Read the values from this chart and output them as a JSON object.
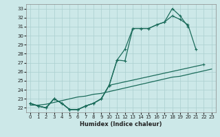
{
  "xlabel": "Humidex (Indice chaleur)",
  "background_color": "#cce8e8",
  "grid_color": "#aacfcf",
  "line_color": "#1a6b5a",
  "x_values": [
    0,
    1,
    2,
    3,
    4,
    5,
    6,
    7,
    8,
    9,
    10,
    11,
    12,
    13,
    14,
    15,
    16,
    17,
    18,
    19,
    20,
    21,
    22,
    23
  ],
  "s1_y": [
    22.5,
    22.2,
    22.0,
    23.0,
    22.5,
    21.8,
    21.8,
    22.2,
    22.5,
    23.0,
    24.5,
    27.3,
    27.2,
    30.8,
    30.8,
    30.8,
    31.2,
    31.5,
    33.0,
    32.2,
    31.0,
    null,
    null,
    null
  ],
  "s2_y": [
    22.5,
    22.2,
    22.0,
    23.0,
    22.5,
    21.8,
    21.8,
    22.2,
    22.5,
    23.0,
    24.5,
    27.3,
    28.5,
    30.8,
    30.8,
    30.8,
    31.2,
    31.5,
    32.2,
    31.8,
    31.2,
    28.5,
    null,
    null
  ],
  "s3_y": [
    22.5,
    22.2,
    22.0,
    23.0,
    22.5,
    21.8,
    21.8,
    22.2,
    22.5,
    23.0,
    24.5,
    null,
    null,
    null,
    null,
    null,
    null,
    null,
    null,
    null,
    null,
    null,
    26.8,
    null
  ],
  "s_lin": [
    22.3,
    22.3,
    22.4,
    22.6,
    22.8,
    23.0,
    23.2,
    23.3,
    23.5,
    23.6,
    23.8,
    24.0,
    24.2,
    24.4,
    24.6,
    24.8,
    25.0,
    25.2,
    25.4,
    25.5,
    25.7,
    25.9,
    26.1,
    26.3
  ],
  "ylim": [
    21.5,
    33.5
  ],
  "xlim": [
    -0.5,
    23.5
  ],
  "yticks": [
    22,
    23,
    24,
    25,
    26,
    27,
    28,
    29,
    30,
    31,
    32,
    33
  ],
  "xticks": [
    0,
    1,
    2,
    3,
    4,
    5,
    6,
    7,
    8,
    9,
    10,
    11,
    12,
    13,
    14,
    15,
    16,
    17,
    18,
    19,
    20,
    21,
    22,
    23
  ],
  "ylabel_fontsize": 5,
  "xlabel_fontsize": 6
}
